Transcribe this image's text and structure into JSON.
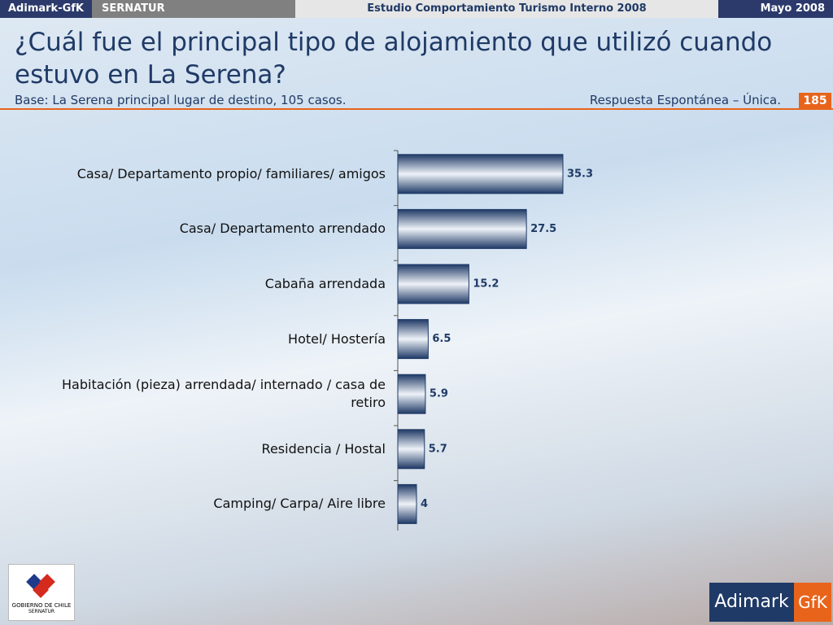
{
  "header": {
    "brand": "Adimark-GfK",
    "client": "SERNATUR",
    "study": "Estudio Comportamiento Turismo Interno 2008",
    "date": "Mayo 2008"
  },
  "slide": {
    "title": "¿Cuál fue el principal tipo de alojamiento que utilizó cuando estuvo en La Serena?",
    "base": "Base: La Serena principal lugar de destino, 105 casos.",
    "note": "Respuesta Espontánea – Única.",
    "page": "185"
  },
  "logos": {
    "gov": "GOBIERNO DE CHILE",
    "gov_sub": "SERNATUR",
    "adimark": "Adimark",
    "gfk": "GfK"
  },
  "chart_data": {
    "type": "bar",
    "orientation": "horizontal",
    "color": "#1f3a66",
    "categories": [
      "Casa/ Departamento propio/ familiares/ amigos",
      "Casa/ Departamento arrendado",
      "Cabaña arrendada",
      "Hotel/ Hostería",
      "Habitación (pieza) arrendada/ internado / casa de retiro",
      "Residencia / Hostal",
      "Camping/ Carpa/ Aire libre"
    ],
    "values": [
      35.3,
      27.5,
      15.2,
      6.5,
      5.9,
      5.7,
      4.0
    ],
    "xlim": [
      0,
      40
    ]
  }
}
